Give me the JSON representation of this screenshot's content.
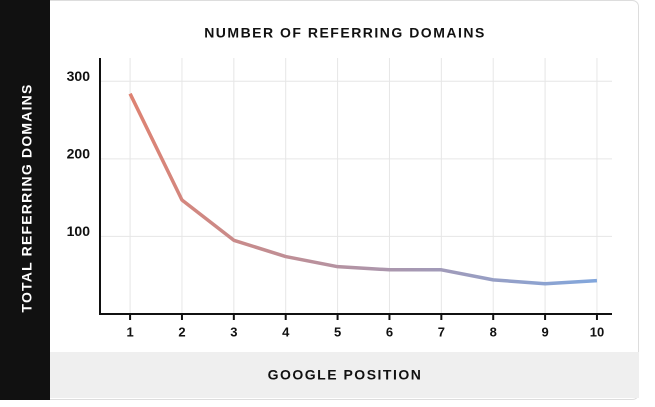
{
  "chart_data": {
    "type": "line",
    "title": "NUMBER OF REFERRING DOMAINS",
    "x_label": "GOOGLE POSITION",
    "y_label": "TOTAL REFERRING DOMAINS",
    "x": [
      1,
      2,
      3,
      4,
      5,
      6,
      7,
      8,
      9,
      10
    ],
    "values": [
      284,
      147,
      95,
      74,
      61,
      57,
      57,
      44,
      39,
      43
    ],
    "xlim": [
      0.42,
      10.29
    ],
    "ylim": [
      0,
      330
    ],
    "xticks": [
      1,
      2,
      3,
      4,
      5,
      6,
      7,
      8,
      9,
      10
    ],
    "yticks": [
      100,
      200,
      300
    ],
    "grid": true,
    "colors": [
      "#e4806b",
      "#7fa8e0"
    ]
  }
}
